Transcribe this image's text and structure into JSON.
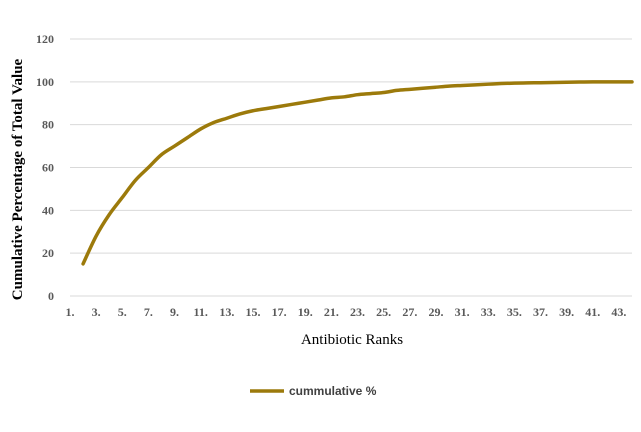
{
  "chart_data": {
    "type": "line",
    "title": "",
    "xlabel": "Antibiotic Ranks",
    "ylabel": "Cumulative Percentage of Total Value",
    "ylim": [
      0,
      120
    ],
    "yticks": [
      0,
      20,
      40,
      60,
      80,
      100,
      120
    ],
    "xlim": [
      1,
      44
    ],
    "xticks": [
      "1.",
      "3.",
      "5.",
      "7.",
      "9.",
      "11.",
      "13.",
      "15.",
      "17.",
      "19.",
      "21.",
      "23.",
      "25.",
      "27.",
      "29.",
      "31.",
      "33.",
      "35.",
      "37.",
      "39.",
      "41.",
      "43."
    ],
    "grid": "horizontal",
    "legend_position": "bottom",
    "series": [
      {
        "name": "cummulative %",
        "color": "#9c7a0b",
        "x": [
          2,
          3,
          4,
          5,
          6,
          7,
          8,
          9,
          10,
          11,
          12,
          13,
          14,
          15,
          16,
          17,
          18,
          19,
          20,
          21,
          22,
          23,
          24,
          25,
          26,
          27,
          28,
          29,
          30,
          31,
          32,
          33,
          34,
          35,
          36,
          37,
          38,
          39,
          40,
          41,
          42,
          43,
          44
        ],
        "values": [
          15,
          28,
          38,
          46,
          54,
          60,
          66,
          70,
          74,
          78,
          81,
          83,
          85,
          86.5,
          87.5,
          88.5,
          89.5,
          90.5,
          91.5,
          92.5,
          93,
          94,
          94.5,
          95,
          96,
          96.5,
          97,
          97.5,
          98,
          98.3,
          98.6,
          98.9,
          99.2,
          99.4,
          99.5,
          99.6,
          99.7,
          99.8,
          99.9,
          100,
          100,
          100,
          100
        ]
      }
    ]
  }
}
